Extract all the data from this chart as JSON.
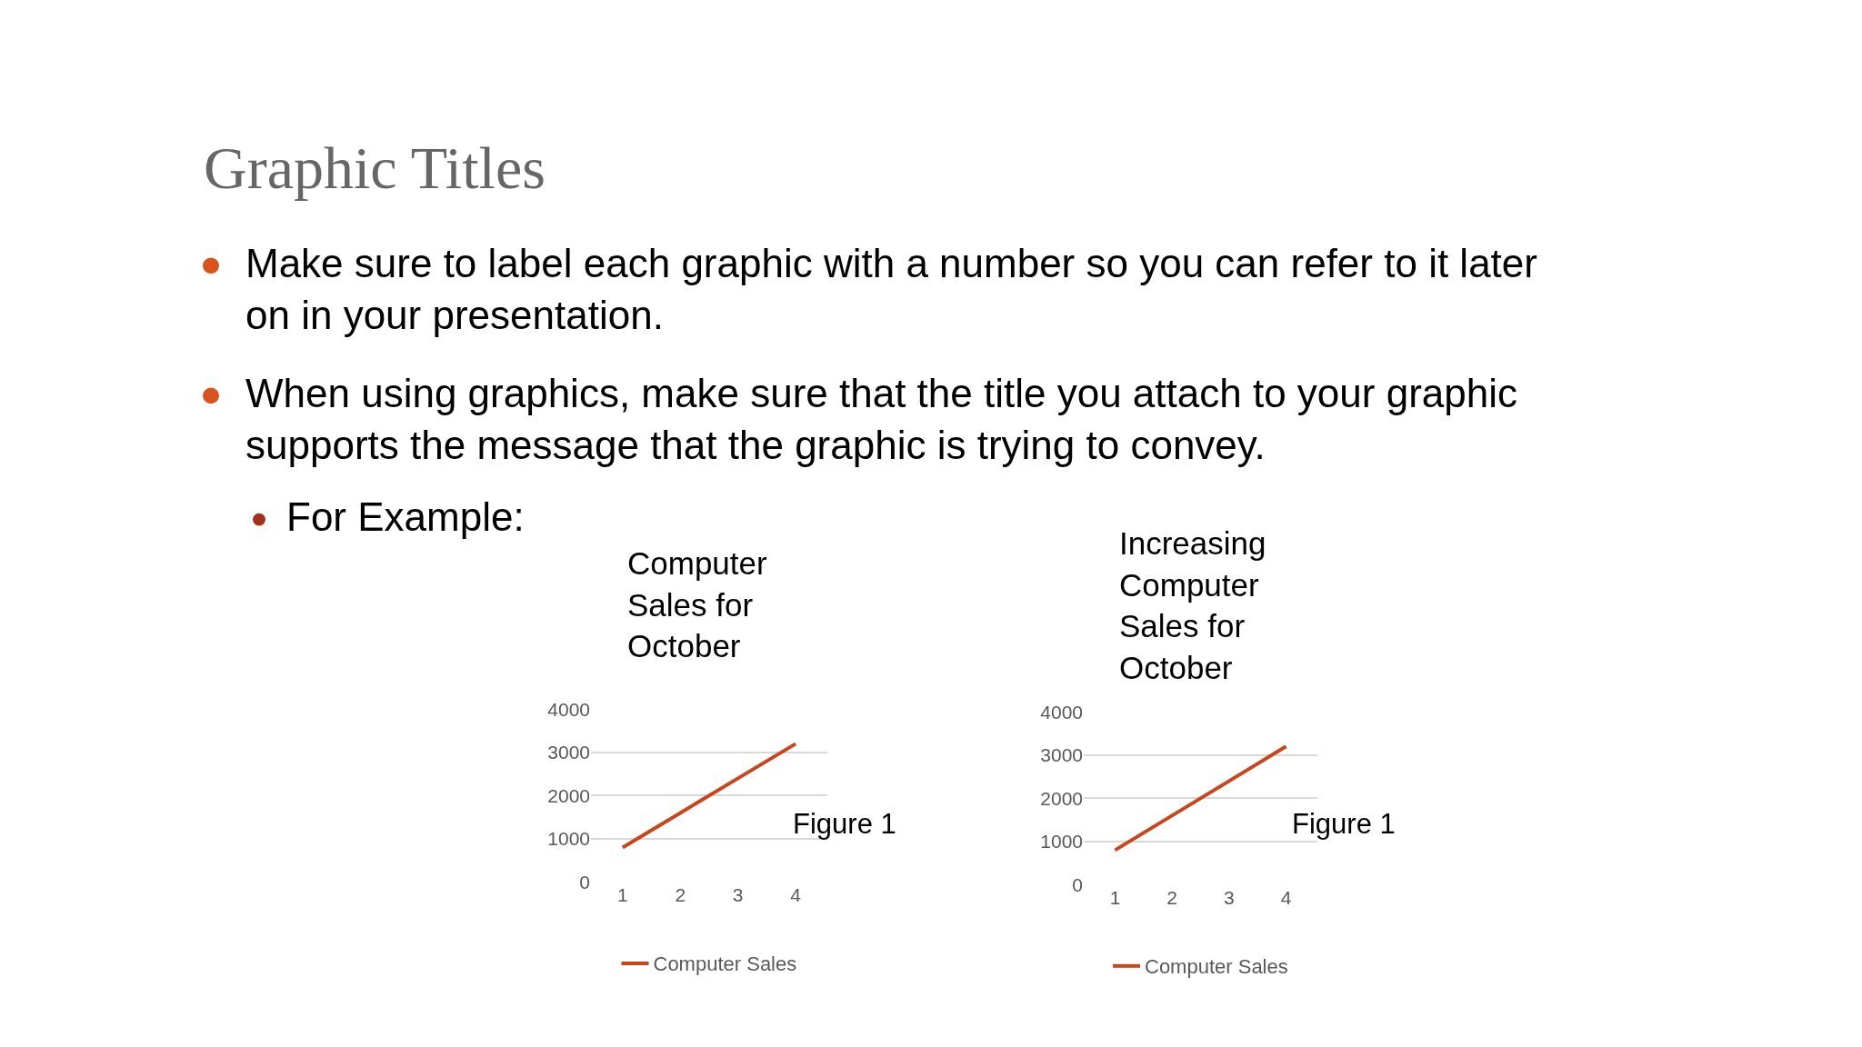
{
  "chart_data": [
    {
      "type": "other",
      "title": "Graphic Titles",
      "annotations": [
        "Make sure to label each graphic with a number so you can refer to it later on in your presentation.",
        "When using graphics, make sure that the title you attach to your graphic supports the message that the graphic is trying to convey.",
        "For Example:"
      ]
    },
    {
      "type": "line",
      "title": "Computer Sales for October",
      "categories": [
        "1",
        "2",
        "3",
        "4"
      ],
      "series": [
        {
          "name": "Computer Sales",
          "color": "#c8461e",
          "values": [
            800,
            1600,
            2400,
            3200
          ]
        }
      ],
      "ylim": [
        0,
        4000
      ],
      "yticks": [
        0,
        1000,
        2000,
        3000,
        4000
      ],
      "grid": "y",
      "legend": "bottom",
      "marker": "none",
      "annotations": [
        "Figure 1"
      ]
    },
    {
      "type": "line",
      "title": "Increasing Computer Sales for October",
      "categories": [
        "1",
        "2",
        "3",
        "4"
      ],
      "series": [
        {
          "name": "Computer Sales",
          "color": "#c8461e",
          "values": [
            800,
            1600,
            2400,
            3200
          ]
        }
      ],
      "ylim": [
        0,
        4000
      ],
      "yticks": [
        0,
        1000,
        2000,
        3000,
        4000
      ],
      "grid": "y",
      "legend": "bottom",
      "marker": "none",
      "annotations": [
        "Figure 1"
      ]
    }
  ]
}
